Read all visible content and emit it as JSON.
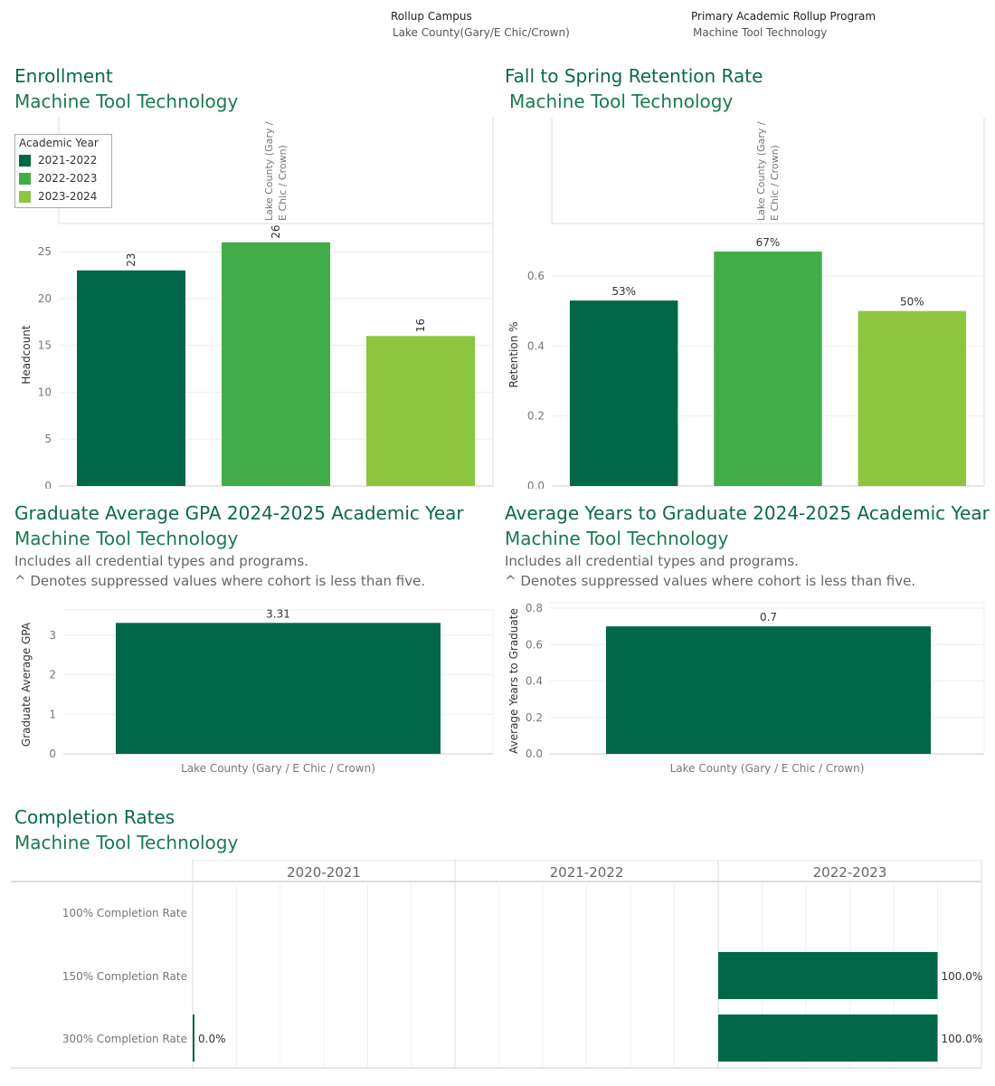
{
  "filters": {
    "campus": {
      "label": "Rollup Campus",
      "value": "Lake County(Gary/E Chic/Crown)"
    },
    "program": {
      "label": "Primary Academic Rollup Program",
      "value": "Machine Tool Technology"
    }
  },
  "colors": {
    "y2021": "#006848",
    "y2022": "#42ad48",
    "y2023": "#8cc63f",
    "title": "#0b6b46"
  },
  "enrollment": {
    "title": "Enrollment",
    "subtitle": "Machine Tool Technology"
  },
  "retention": {
    "title": "Fall to Spring Retention Rate",
    "subtitle": "Machine Tool Technology"
  },
  "gpa": {
    "title": "Graduate Average GPA 2024-2025 Academic Year",
    "subtitle": "Machine Tool Technology",
    "note1": "Includes all credential types and programs.",
    "note2": "^ Denotes suppressed values where cohort is less than five."
  },
  "ytg": {
    "title": "Average Years to Graduate 2024-2025 Academic Year",
    "subtitle": "Machine Tool Technology",
    "note1": "Includes all credential types and programs.",
    "note2": "^ Denotes suppressed values where cohort is less than five."
  },
  "completion": {
    "title": "Completion Rates",
    "subtitle": "Machine Tool Technology"
  },
  "legend": {
    "title": "Academic Year",
    "items": [
      "2021-2022",
      "2022-2023",
      "2023-2024"
    ]
  },
  "chart_data": [
    {
      "type": "bar",
      "id": "enrollment",
      "column_header": "Lake County (Gary / E Chic / Crown)",
      "categories": [
        "2021-2022",
        "2022-2023",
        "2023-2024"
      ],
      "values": [
        23,
        26,
        16
      ],
      "labels": [
        "23",
        "26",
        "16"
      ],
      "ylabel": "Headcount",
      "ylim": [
        0,
        28
      ],
      "yticks": [
        0,
        5,
        10,
        15,
        20,
        25
      ],
      "legend": "top-left"
    },
    {
      "type": "bar",
      "id": "retention",
      "column_header": "Lake County (Gary / E Chic / Crown)",
      "categories": [
        "2021-2022",
        "2022-2023",
        "2023-2024"
      ],
      "values": [
        0.53,
        0.67,
        0.5
      ],
      "labels": [
        "53%",
        "67%",
        "50%"
      ],
      "ylabel": "Retention %",
      "ylim": [
        0,
        0.75
      ],
      "yticks": [
        "0.0",
        "0.2",
        "0.4",
        "0.6"
      ]
    },
    {
      "type": "bar",
      "id": "gpa",
      "categories": [
        "Lake County (Gary / E Chic / Crown)"
      ],
      "values": [
        3.31
      ],
      "labels": [
        "3.31"
      ],
      "ylabel": "Graduate Average GPA",
      "ylim": [
        0,
        3.5
      ],
      "yticks": [
        "0",
        "1",
        "2",
        "3"
      ]
    },
    {
      "type": "bar",
      "id": "ytg",
      "categories": [
        "Lake County (Gary / E Chic / Crown)"
      ],
      "values": [
        0.7
      ],
      "labels": [
        "0.7"
      ],
      "ylabel": "Average Years to Graduate",
      "ylim": [
        0,
        0.8
      ],
      "yticks": [
        "0.0",
        "0.2",
        "0.4",
        "0.6",
        "0.8"
      ]
    },
    {
      "type": "bar",
      "id": "completion",
      "orientation": "horizontal",
      "columns": [
        "2020-2021",
        "2021-2022",
        "2022-2023"
      ],
      "rows": [
        "100% Completion Rate",
        "150% Completion Rate",
        "300% Completion Rate"
      ],
      "xlim": [
        0,
        1.2
      ],
      "values": [
        [
          null,
          null,
          null
        ],
        [
          null,
          null,
          1.0
        ],
        [
          0.0,
          null,
          1.0
        ]
      ],
      "labels": [
        [
          "",
          "",
          ""
        ],
        [
          "",
          "",
          "100.0%"
        ],
        [
          "0.0%",
          "",
          "100.0%"
        ]
      ]
    }
  ]
}
